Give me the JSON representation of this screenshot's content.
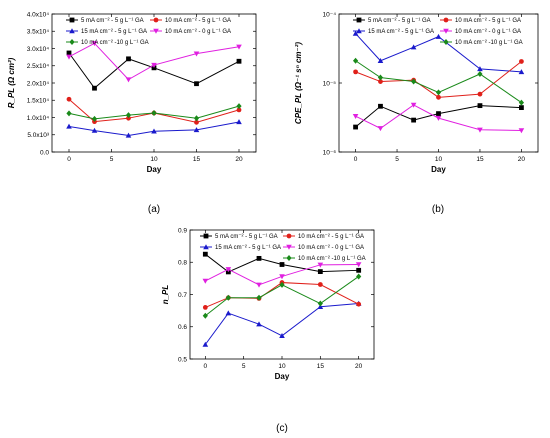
{
  "series_styles": [
    {
      "name": "5 mA cm⁻² - 5 g L⁻¹ GA",
      "color": "#000000",
      "marker": "square"
    },
    {
      "name": "15 mA cm⁻² - 5 g L⁻¹ GA",
      "color": "#1a1acc",
      "marker": "triangle-up"
    },
    {
      "name": "10 mA cm⁻² - 5 g L⁻¹ GA",
      "color": "#e0201a",
      "marker": "circle"
    },
    {
      "name": "10 mA cm⁻² - 0 g L⁻¹ GA",
      "color": "#e020e0",
      "marker": "triangle-down"
    },
    {
      "name": "10 mA cm⁻² -10 g L⁻¹ GA",
      "color": "#1a8a1a",
      "marker": "diamond"
    }
  ],
  "chart_data": [
    {
      "type": "line",
      "panel": "(a)",
      "xlabel": "Day",
      "ylabel": "R_PL (Ω cm²)",
      "x_ticks": [
        0,
        5,
        10,
        15,
        20
      ],
      "y_ticks": [
        "0.0",
        "5.0x10³",
        "1.0x10⁴",
        "1.5x10⁴",
        "2.0x10⁴",
        "2.5x10⁴",
        "3.0x10⁴",
        "3.5x10⁴",
        "4.0x10⁴"
      ],
      "xlim": [
        -2,
        22
      ],
      "ylim": [
        0,
        40000
      ],
      "log_y": false,
      "legend": "top",
      "x": [
        0,
        3,
        7,
        10,
        15,
        20
      ],
      "series": [
        {
          "name": "5 mA cm⁻² - 5 g L⁻¹ GA",
          "values": [
            28700,
            18500,
            27000,
            24400,
            19800,
            26300
          ]
        },
        {
          "name": "10 mA cm⁻² - 5 g L⁻¹ GA",
          "values": [
            15300,
            8800,
            9800,
            11300,
            8600,
            12200
          ]
        },
        {
          "name": "15 mA cm⁻² - 5 g L⁻¹ GA",
          "values": [
            7400,
            6200,
            4800,
            6000,
            6400,
            8700
          ]
        },
        {
          "name": "10 mA cm⁻² - 0 g L⁻¹ GA",
          "values": [
            27600,
            31500,
            21000,
            25200,
            28500,
            30500
          ]
        },
        {
          "name": "10 mA cm⁻² -10 g L⁻¹ GA",
          "values": [
            11200,
            9600,
            10700,
            11300,
            9800,
            13300
          ]
        }
      ]
    },
    {
      "type": "line",
      "panel": "(b)",
      "xlabel": "Day",
      "ylabel": "CPE_PL (Ω⁻¹ sⁿ cm⁻²)",
      "x_ticks": [
        0,
        5,
        10,
        15,
        20
      ],
      "y_ticks": [
        "10⁻⁶",
        "10⁻⁵",
        "10⁻⁴"
      ],
      "xlim": [
        -2,
        22
      ],
      "ylim": [
        1e-06,
        0.0001
      ],
      "log_y": true,
      "legend": "top",
      "x": [
        0,
        3,
        7,
        10,
        15,
        20
      ],
      "series": [
        {
          "name": "5 mA cm⁻² - 5 g L⁻¹ GA",
          "values": [
            2.3e-06,
            4.6e-06,
            2.9e-06,
            3.6e-06,
            4.7e-06,
            4.4e-06
          ]
        },
        {
          "name": "15 mA cm⁻² - 5 g L⁻¹ GA",
          "values": [
            5.2e-05,
            2.1e-05,
            3.3e-05,
            4.7e-05,
            1.6e-05,
            1.45e-05
          ]
        },
        {
          "name": "10 mA cm⁻² - 5 g L⁻¹ GA",
          "values": [
            1.45e-05,
            1.05e-05,
            1.1e-05,
            6.2e-06,
            6.9e-06,
            2.05e-05
          ]
        },
        {
          "name": "10 mA cm⁻² - 0 g L⁻¹ GA",
          "values": [
            3.3e-06,
            2.2e-06,
            4.8e-06,
            3.1e-06,
            2.1e-06,
            2.05e-06
          ]
        },
        {
          "name": "10 mA cm⁻² -10 g L⁻¹ GA",
          "values": [
            2.1e-05,
            1.2e-05,
            1.05e-05,
            7.3e-06,
            1.35e-05,
            5.2e-06
          ]
        }
      ]
    },
    {
      "type": "line",
      "panel": "(c)",
      "xlabel": "Day",
      "ylabel": "n_PL",
      "x_ticks": [
        0,
        5,
        10,
        15,
        20
      ],
      "y_ticks": [
        "0.5",
        "0.6",
        "0.7",
        "0.8",
        "0.9"
      ],
      "xlim": [
        -2,
        22
      ],
      "ylim": [
        0.5,
        0.9
      ],
      "log_y": false,
      "legend": "top",
      "x": [
        0,
        3,
        7,
        10,
        15,
        20
      ],
      "series": [
        {
          "name": "5 mA cm⁻² - 5 g L⁻¹ GA",
          "values": [
            0.825,
            0.77,
            0.812,
            0.793,
            0.771,
            0.775
          ]
        },
        {
          "name": "15 mA cm⁻² - 5 g L⁻¹ GA",
          "values": [
            0.545,
            0.642,
            0.608,
            0.572,
            0.662,
            0.672
          ]
        },
        {
          "name": "10 mA cm⁻² - 5 g L⁻¹ GA",
          "values": [
            0.66,
            0.69,
            0.688,
            0.737,
            0.731,
            0.67
          ]
        },
        {
          "name": "10 mA cm⁻² - 0 g L⁻¹ GA",
          "values": [
            0.742,
            0.778,
            0.73,
            0.756,
            0.792,
            0.793
          ]
        },
        {
          "name": "10 mA cm⁻² -10 g L⁻¹ GA",
          "values": [
            0.634,
            0.69,
            0.69,
            0.73,
            0.672,
            0.756
          ]
        }
      ]
    }
  ]
}
